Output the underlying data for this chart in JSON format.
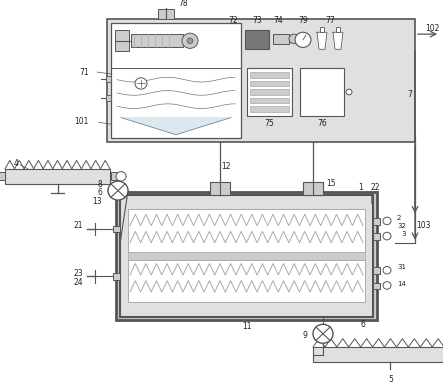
{
  "bg": "#ffffff",
  "lc": "#555555",
  "gray_light": "#e0e0e0",
  "gray_med": "#aaaaaa",
  "gray_dark": "#777777",
  "gray_fill": "#cccccc",
  "gray_deep": "#999999",
  "water_fill": "#dce8f0",
  "black": "#333333"
}
